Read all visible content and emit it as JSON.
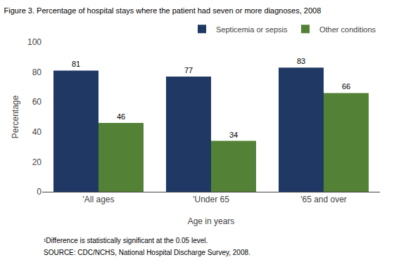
{
  "chart_data": {
    "type": "bar",
    "title": "Figure 3. Percentage of hospital stays where the patient had seven or more diagnoses, 2008",
    "categories": [
      "'All ages",
      "'Under 65",
      "'65 and over"
    ],
    "series": [
      {
        "name": "Septicemia or sepsis",
        "color": "#1F3864",
        "values": [
          81,
          77,
          83
        ]
      },
      {
        "name": "Other conditions",
        "color": "#538135",
        "values": [
          46,
          34,
          66
        ]
      }
    ],
    "xlabel": "Age in years",
    "ylabel": "Percentage",
    "ylim": [
      0,
      100
    ],
    "yticks": [
      0,
      20,
      40,
      60,
      80,
      100
    ],
    "data_labels": true,
    "legend": "upper right",
    "grid": false,
    "annotations": [
      "¹Difference is statistically significant at the 0.05 level.",
      "SOURCE: CDC/NCHS, National Hospital Discharge Survey, 2008."
    ]
  }
}
